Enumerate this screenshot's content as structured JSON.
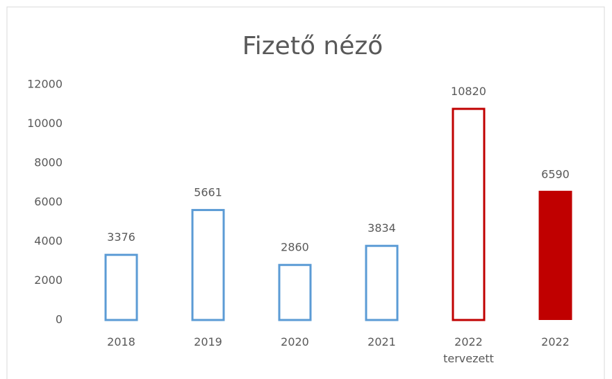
{
  "chart_data": {
    "type": "bar",
    "title": "Fizető néző",
    "categories": [
      "2018",
      "2019",
      "2020",
      "2021",
      "2022\ntervezett",
      "2022"
    ],
    "values": [
      3376,
      5661,
      2860,
      3834,
      10820,
      6590
    ],
    "colors": [
      "#5b9bd5",
      "#5b9bd5",
      "#5b9bd5",
      "#5b9bd5",
      "#c00000",
      "#c00000"
    ],
    "filled": [
      false,
      false,
      false,
      false,
      false,
      true
    ],
    "ylim": [
      0,
      12000
    ],
    "yticks": [
      0,
      2000,
      4000,
      6000,
      8000,
      10000,
      12000
    ],
    "grid": false
  }
}
